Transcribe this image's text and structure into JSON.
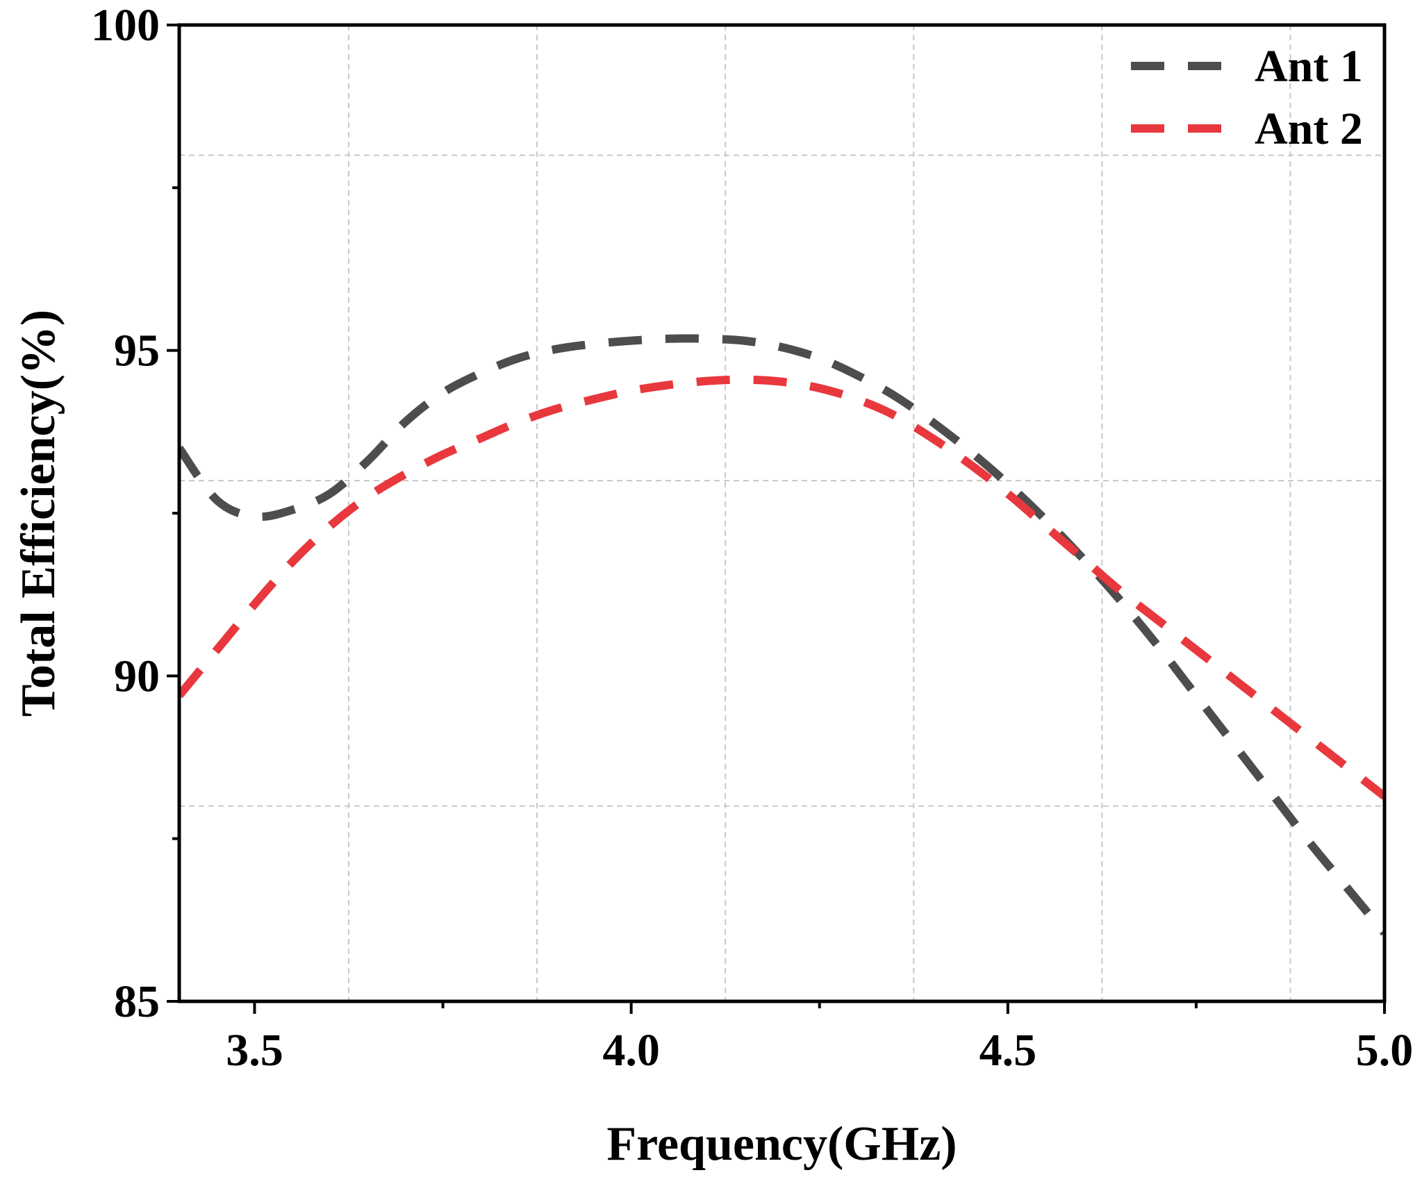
{
  "chart_data": {
    "type": "line",
    "xlabel": "Frequency(GHz)",
    "ylabel": "Total Efficiency(%)",
    "xlim": [
      3.4,
      5.0
    ],
    "ylim": [
      85,
      100
    ],
    "xticks": [
      "3.5",
      "4.0",
      "4.5",
      "5.0"
    ],
    "xtick_values": [
      3.5,
      4.0,
      4.5,
      5.0
    ],
    "yticks": [
      "85",
      "90",
      "95",
      "100"
    ],
    "ytick_values": [
      85,
      90,
      95,
      100
    ],
    "grid": true,
    "legend_position": "top-right",
    "series": [
      {
        "name": "Ant 1",
        "color": "#4d4d4d",
        "x": [
          3.4,
          3.45,
          3.5,
          3.55,
          3.6,
          3.65,
          3.7,
          3.75,
          3.8,
          3.85,
          3.9,
          3.95,
          4.0,
          4.05,
          4.1,
          4.15,
          4.2,
          4.25,
          4.3,
          4.35,
          4.4,
          4.45,
          4.5,
          4.55,
          4.6,
          4.65,
          4.7,
          4.75,
          4.8,
          4.85,
          4.9,
          4.95,
          5.0
        ],
        "y": [
          93.5,
          92.7,
          92.45,
          92.55,
          92.8,
          93.3,
          93.9,
          94.35,
          94.65,
          94.88,
          95.02,
          95.1,
          95.15,
          95.18,
          95.18,
          95.15,
          95.05,
          94.88,
          94.62,
          94.3,
          93.9,
          93.45,
          92.95,
          92.4,
          91.8,
          91.15,
          90.45,
          89.7,
          88.95,
          88.2,
          87.45,
          86.75,
          86.05
        ]
      },
      {
        "name": "Ant 2",
        "color": "#e8383d",
        "x": [
          3.4,
          3.45,
          3.5,
          3.55,
          3.6,
          3.65,
          3.7,
          3.75,
          3.8,
          3.85,
          3.9,
          3.95,
          4.0,
          4.05,
          4.1,
          4.15,
          4.2,
          4.25,
          4.3,
          4.35,
          4.4,
          4.45,
          4.5,
          4.55,
          4.6,
          4.65,
          4.7,
          4.75,
          4.8,
          4.85,
          4.9,
          4.95,
          5.0
        ],
        "y": [
          89.7,
          90.4,
          91.1,
          91.75,
          92.3,
          92.75,
          93.1,
          93.4,
          93.65,
          93.9,
          94.1,
          94.25,
          94.38,
          94.47,
          94.53,
          94.55,
          94.52,
          94.42,
          94.25,
          94.0,
          93.65,
          93.25,
          92.8,
          92.3,
          91.8,
          91.3,
          90.85,
          90.4,
          89.95,
          89.5,
          89.05,
          88.6,
          88.15
        ]
      }
    ]
  }
}
